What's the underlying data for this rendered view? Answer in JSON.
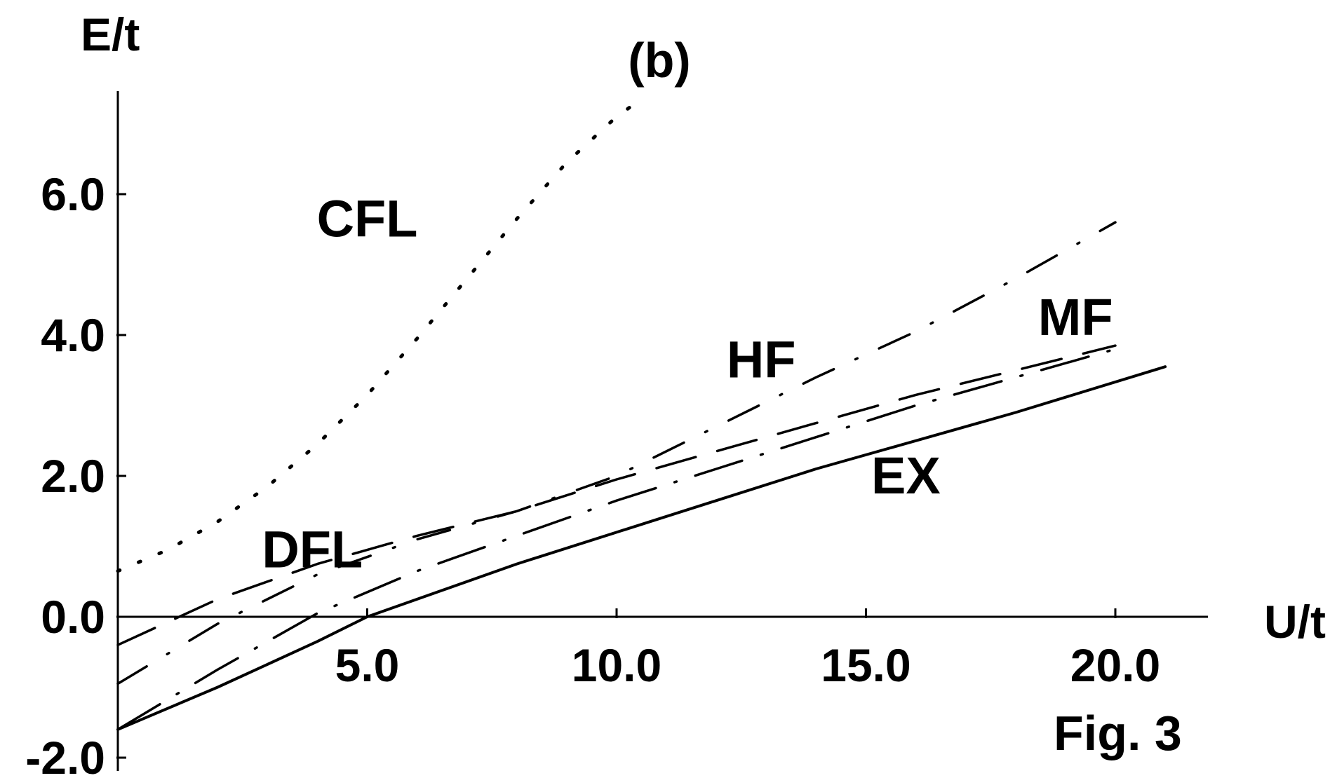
{
  "chart_data": {
    "type": "line",
    "panel_label": "(b)",
    "figure_label": "Fig. 3",
    "xlabel": "U/t",
    "ylabel": "E/t",
    "xlim": [
      0,
      22
    ],
    "ylim": [
      -2,
      7.5
    ],
    "x_ticks": [
      {
        "value": 5,
        "label": "5.0"
      },
      {
        "value": 10,
        "label": "10.0"
      },
      {
        "value": 15,
        "label": "15.0"
      },
      {
        "value": 20,
        "label": "20.0"
      }
    ],
    "y_ticks": [
      {
        "value": -2,
        "label": "-2.0"
      },
      {
        "value": 0,
        "label": "0.0"
      },
      {
        "value": 2,
        "label": "2.0"
      },
      {
        "value": 4,
        "label": "4.0"
      },
      {
        "value": 6,
        "label": "6.0"
      }
    ],
    "series": [
      {
        "name": "CFL",
        "style": "dotted",
        "x": [
          0,
          1,
          2,
          3,
          4,
          5,
          6,
          7,
          8,
          9,
          10,
          10.5
        ],
        "y": [
          0.65,
          0.95,
          1.35,
          1.85,
          2.45,
          3.15,
          3.95,
          4.8,
          5.65,
          6.45,
          7.1,
          7.35
        ],
        "label_at": {
          "x": 5.0,
          "y": 5.4
        }
      },
      {
        "name": "HF",
        "style": "dash-dot",
        "x": [
          0,
          2,
          4,
          6,
          8,
          10,
          12,
          14,
          16,
          18,
          20
        ],
        "y": [
          -0.95,
          -0.1,
          0.6,
          1.1,
          1.5,
          2.0,
          2.7,
          3.4,
          4.05,
          4.8,
          5.6
        ],
        "label_at": {
          "x": 12.9,
          "y": 3.4
        }
      },
      {
        "name": "DFL",
        "style": "dashed",
        "x": [
          0,
          2,
          4,
          6,
          8,
          10,
          12,
          14,
          16,
          18,
          20
        ],
        "y": [
          -0.4,
          0.25,
          0.75,
          1.15,
          1.5,
          1.95,
          2.35,
          2.75,
          3.15,
          3.5,
          3.85
        ],
        "label_at": {
          "x": 3.9,
          "y": 0.7
        }
      },
      {
        "name": "MF",
        "style": "long-dash-dot",
        "x": [
          0,
          2,
          4,
          6,
          8,
          10,
          12,
          14,
          16,
          18,
          20
        ],
        "y": [
          -1.6,
          -0.75,
          0.05,
          0.65,
          1.15,
          1.65,
          2.1,
          2.55,
          3.0,
          3.4,
          3.8
        ],
        "label_at": {
          "x": 19.2,
          "y": 4.0
        }
      },
      {
        "name": "EX",
        "style": "solid",
        "x": [
          0,
          2,
          4,
          5,
          6,
          8,
          10,
          12,
          14,
          16,
          18,
          21
        ],
        "y": [
          -1.6,
          -1.0,
          -0.35,
          0.0,
          0.25,
          0.75,
          1.2,
          1.65,
          2.1,
          2.5,
          2.9,
          3.55
        ],
        "label_at": {
          "x": 15.8,
          "y": 1.75
        }
      }
    ]
  }
}
